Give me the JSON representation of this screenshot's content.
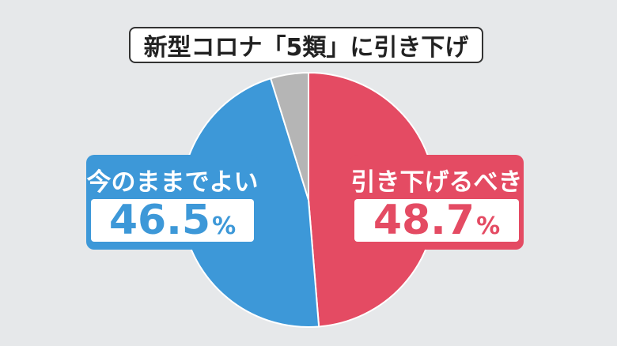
{
  "chart_data": {
    "type": "pie",
    "title": "新型コロナ「5類」に引き下げ",
    "slices": [
      {
        "label": "引き下げるべき",
        "value": 48.7,
        "display": "48.7",
        "unit": "%",
        "color": "#e44b63"
      },
      {
        "label": "今のままでよい",
        "value": 46.5,
        "display": "46.5",
        "unit": "%",
        "color": "#3d98d8"
      },
      {
        "label": "",
        "value": 4.8,
        "color": "#b5b5b5"
      }
    ]
  },
  "labels": {
    "right": {
      "caption": "引き下げるべき",
      "value": "48.7",
      "unit": "%"
    },
    "left": {
      "caption": "今のままでよい",
      "value": "46.5",
      "unit": "%"
    }
  },
  "colors": {
    "background": "#e6e8ea",
    "red": "#e44b63",
    "blue": "#3d98d8",
    "gray": "#b5b5b5"
  }
}
